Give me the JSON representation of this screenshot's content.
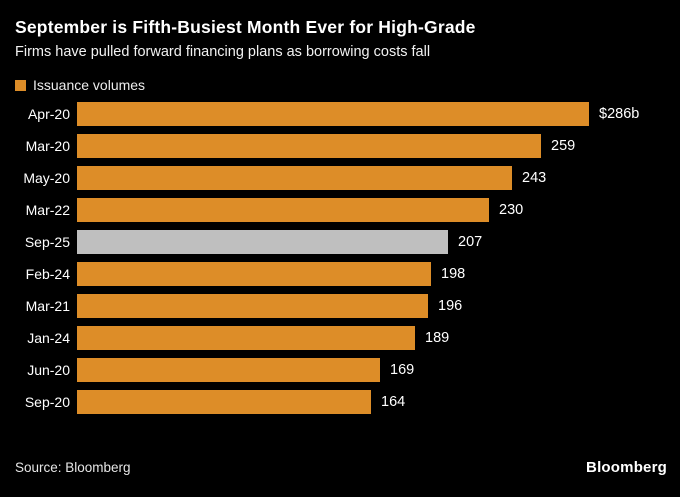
{
  "chart_data": {
    "type": "bar",
    "orientation": "horizontal",
    "title": "September is Fifth-Busiest Month Ever for High-Grade",
    "subtitle": "Firms have pulled forward financing plans as borrowing costs fall",
    "legend": [
      {
        "label": "Issuance volumes",
        "color": "#DD8D28",
        "swatch": "square-icon"
      }
    ],
    "categories": [
      "Apr-20",
      "Mar-20",
      "May-20",
      "Mar-22",
      "Sep-25",
      "Feb-24",
      "Mar-21",
      "Jan-24",
      "Jun-20",
      "Sep-20"
    ],
    "values": [
      286,
      259,
      243,
      230,
      207,
      198,
      196,
      189,
      169,
      164
    ],
    "value_labels": [
      "$286b",
      "259",
      "243",
      "230",
      "207",
      "198",
      "196",
      "189",
      "169",
      "164"
    ],
    "highlight_category": "Sep-25",
    "bar_color": "#DD8D28",
    "highlight_color": "#BFBFBF",
    "xlim": [
      0,
      286
    ],
    "grid": false,
    "legend_position": "top-left"
  },
  "footer": {
    "source": "Source: Bloomberg",
    "logo": "Bloomberg"
  },
  "colors": {
    "background": "#000000",
    "text": "#FFFFFF",
    "accent_orange": "#DD8D28",
    "highlight_gray": "#BFBFBF"
  }
}
